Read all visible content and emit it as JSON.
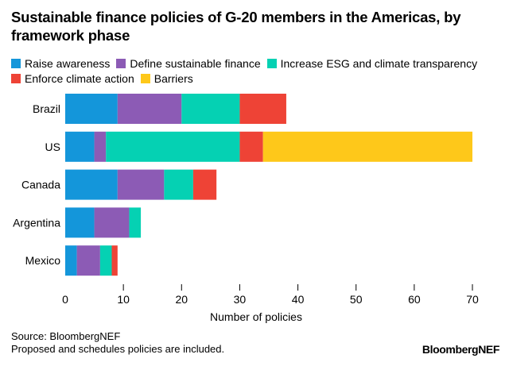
{
  "chart_data": {
    "type": "bar",
    "orientation": "horizontal",
    "stacked": true,
    "title": "Sustainable finance policies of G-20 members in the Americas, by framework phase",
    "xlabel": "Number of policies",
    "ylabel": "",
    "xlim": [
      0,
      70
    ],
    "xticks": [
      0,
      10,
      20,
      30,
      40,
      50,
      60,
      70
    ],
    "grid": false,
    "legend_position": "top",
    "categories": [
      "Brazil",
      "US",
      "Canada",
      "Argentina",
      "Mexico"
    ],
    "series": [
      {
        "name": "Raise awareness",
        "color": "#1496da",
        "values": [
          9,
          5,
          9,
          5,
          2
        ]
      },
      {
        "name": "Define sustainable finance",
        "color": "#8c5bb5",
        "values": [
          11,
          2,
          8,
          6,
          4
        ]
      },
      {
        "name": "Increase ESG and climate transparency",
        "color": "#05d1b3",
        "values": [
          10,
          23,
          5,
          2,
          2
        ]
      },
      {
        "name": "Enforce climate action",
        "color": "#ee4336",
        "values": [
          8,
          4,
          4,
          0,
          1
        ]
      },
      {
        "name": "Barriers",
        "color": "#fec81a",
        "values": [
          0,
          36,
          0,
          0,
          0
        ]
      }
    ]
  },
  "footer": {
    "source": "Source: BloombergNEF",
    "note": "Proposed and schedules policies are included.",
    "logo": "BloombergNEF"
  }
}
